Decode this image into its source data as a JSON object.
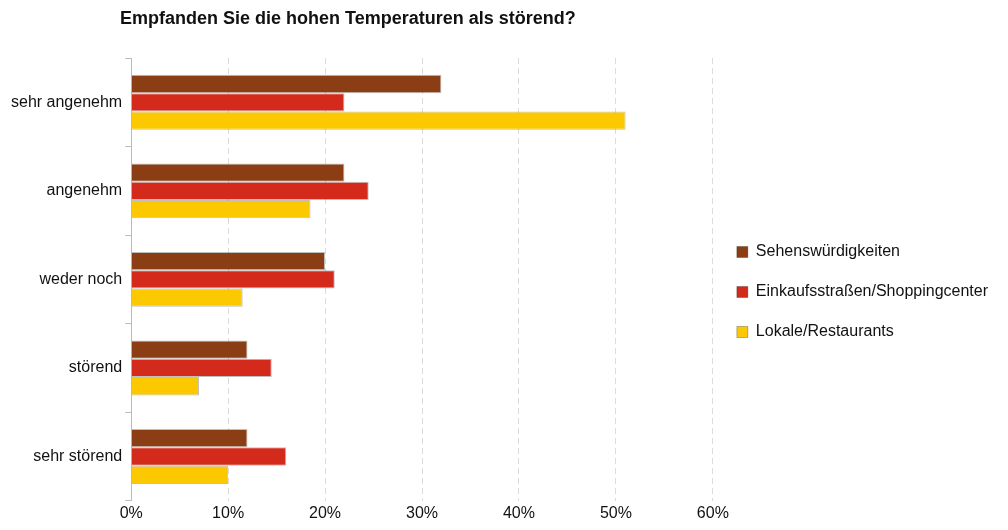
{
  "chart_data": {
    "type": "bar",
    "orientation": "horizontal",
    "title": "Empfanden Sie die hohen Temperaturen als störend?",
    "categories": [
      "sehr angenehm",
      "angenehm",
      "weder noch",
      "störend",
      "sehr störend"
    ],
    "series": [
      {
        "name": "Sehenswürdigkeiten",
        "color": "#8b3e13",
        "values": [
          32,
          22,
          20,
          12,
          12
        ]
      },
      {
        "name": "Einkaufsstraßen/Shoppingcenter",
        "color": "#d42a1b",
        "values": [
          22,
          24.5,
          21,
          14.5,
          16
        ]
      },
      {
        "name": "Lokale/Restaurants",
        "color": "#fcc800",
        "values": [
          51,
          18.5,
          11.5,
          7,
          10
        ]
      }
    ],
    "xlim": [
      0,
      60
    ],
    "xticks": [
      {
        "value": 0,
        "label": "0%"
      },
      {
        "value": 10,
        "label": "10%"
      },
      {
        "value": 20,
        "label": "20%"
      },
      {
        "value": 30,
        "label": "30%"
      },
      {
        "value": 40,
        "label": "40%"
      },
      {
        "value": 50,
        "label": "50%"
      },
      {
        "value": 60,
        "label": "60%"
      }
    ],
    "grid": "x",
    "legend": "right"
  }
}
